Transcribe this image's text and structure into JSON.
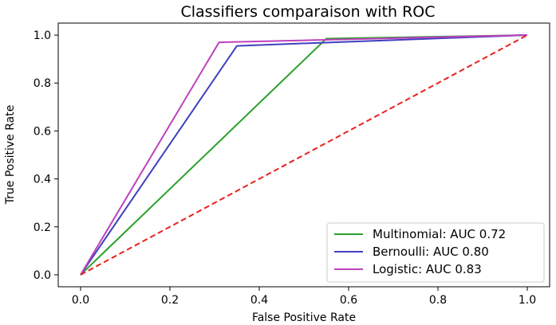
{
  "chart_data": {
    "type": "line",
    "title": "Classifiers comparaison with ROC",
    "xlabel": "False Positive Rate",
    "ylabel": "True Positive Rate",
    "xlim": [
      -0.05,
      1.05
    ],
    "ylim": [
      -0.05,
      1.05
    ],
    "xticks": [
      "0.0",
      "0.2",
      "0.4",
      "0.6",
      "0.8",
      "1.0"
    ],
    "yticks": [
      "0.0",
      "0.2",
      "0.4",
      "0.6",
      "0.8",
      "1.0"
    ],
    "grid": false,
    "legend_position": "lower-right",
    "series": [
      {
        "name": "Multinomial: AUC 0.72",
        "color": "#2ca02c",
        "x": [
          0.0,
          0.55,
          1.0
        ],
        "y": [
          0.0,
          0.985,
          1.0
        ]
      },
      {
        "name": "Bernoulli: AUC 0.80",
        "color": "#3f3fbf",
        "x": [
          0.0,
          0.35,
          1.0
        ],
        "y": [
          0.0,
          0.955,
          1.0
        ]
      },
      {
        "name": "Logistic: AUC 0.83",
        "color": "#bf40bf",
        "x": [
          0.0,
          0.31,
          1.0
        ],
        "y": [
          0.0,
          0.97,
          1.0
        ]
      }
    ],
    "reference_line": {
      "color": "#e8211e",
      "style": "dashed",
      "x": [
        0.0,
        1.0
      ],
      "y": [
        0.0,
        1.0
      ]
    }
  }
}
